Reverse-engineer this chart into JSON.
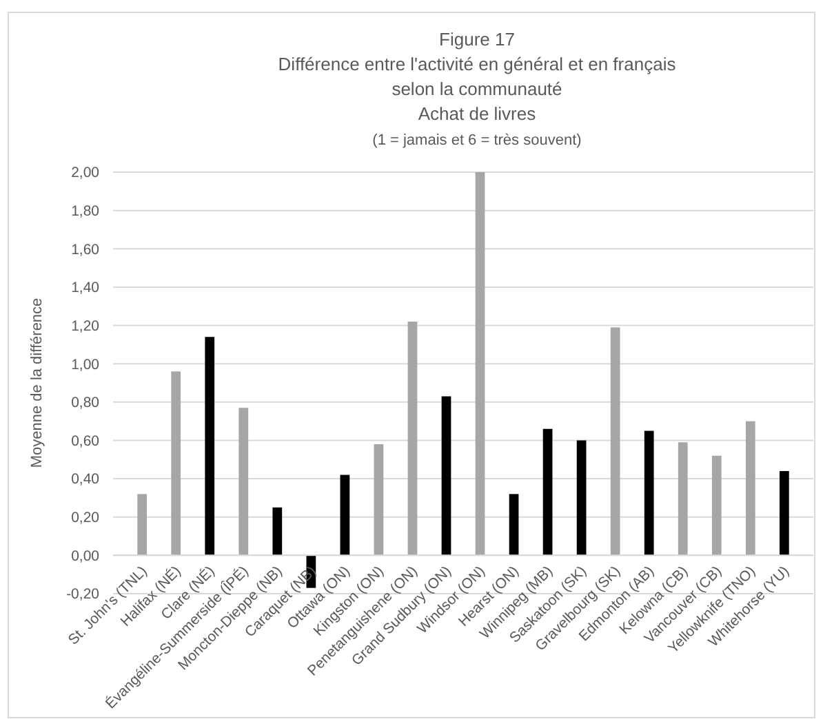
{
  "chart_data": {
    "type": "bar",
    "title": "Figure 17\nDifférence entre l'activité en général et en français\nselon la communauté\nAchat de livres",
    "subtitle": "(1 = jamais et 6 = très souvent)",
    "ylabel": "Moyenne de la différence",
    "categories": [
      "St. John's (TNL)",
      "Halifax (NÉ)",
      "Clare (NÉ)",
      "Évangéline-Summerside (ÎPÉ)",
      "Moncton-Dieppe (NB)",
      "Caraquet (NB)",
      "Ottawa (ON)",
      "Kingston (ON)",
      "Penetanguishene (ON)",
      "Grand Sudbury (ON)",
      "Windsor (ON)",
      "Hearst (ON)",
      "Winnipeg (MB)",
      "Saskatoon (SK)",
      "Gravelbourg (SK)",
      "Edmonton (AB)",
      "Kelowna (CB)",
      "Vancouver (CB)",
      "Yellowknife (TNO)",
      "Whitehorse (YU)"
    ],
    "values": [
      0.32,
      0.96,
      1.14,
      0.77,
      0.25,
      -0.17,
      0.42,
      0.58,
      1.22,
      0.83,
      2.0,
      0.32,
      0.66,
      0.6,
      1.19,
      0.65,
      0.59,
      0.52,
      0.7,
      0.44
    ],
    "colors": [
      "#a6a6a6",
      "#a6a6a6",
      "#000000",
      "#a6a6a6",
      "#000000",
      "#000000",
      "#000000",
      "#a6a6a6",
      "#a6a6a6",
      "#000000",
      "#a6a6a6",
      "#000000",
      "#000000",
      "#000000",
      "#a6a6a6",
      "#000000",
      "#a6a6a6",
      "#a6a6a6",
      "#a6a6a6",
      "#000000"
    ],
    "ylim": [
      -0.2,
      2.0
    ],
    "yticks": [
      {
        "value": -0.2,
        "label": "-0,20"
      },
      {
        "value": 0,
        "label": "0,00"
      },
      {
        "value": 0.2,
        "label": "0,20"
      },
      {
        "value": 0.4,
        "label": "0,40"
      },
      {
        "value": 0.6,
        "label": "0,60"
      },
      {
        "value": 0.8,
        "label": "0,80"
      },
      {
        "value": 1.0,
        "label": "1,00"
      },
      {
        "value": 1.2,
        "label": "1,20"
      },
      {
        "value": 1.4,
        "label": "1,40"
      },
      {
        "value": 1.6,
        "label": "1,60"
      },
      {
        "value": 1.8,
        "label": "1,80"
      },
      {
        "value": 2.0,
        "label": "2,00"
      }
    ],
    "grid": true
  }
}
